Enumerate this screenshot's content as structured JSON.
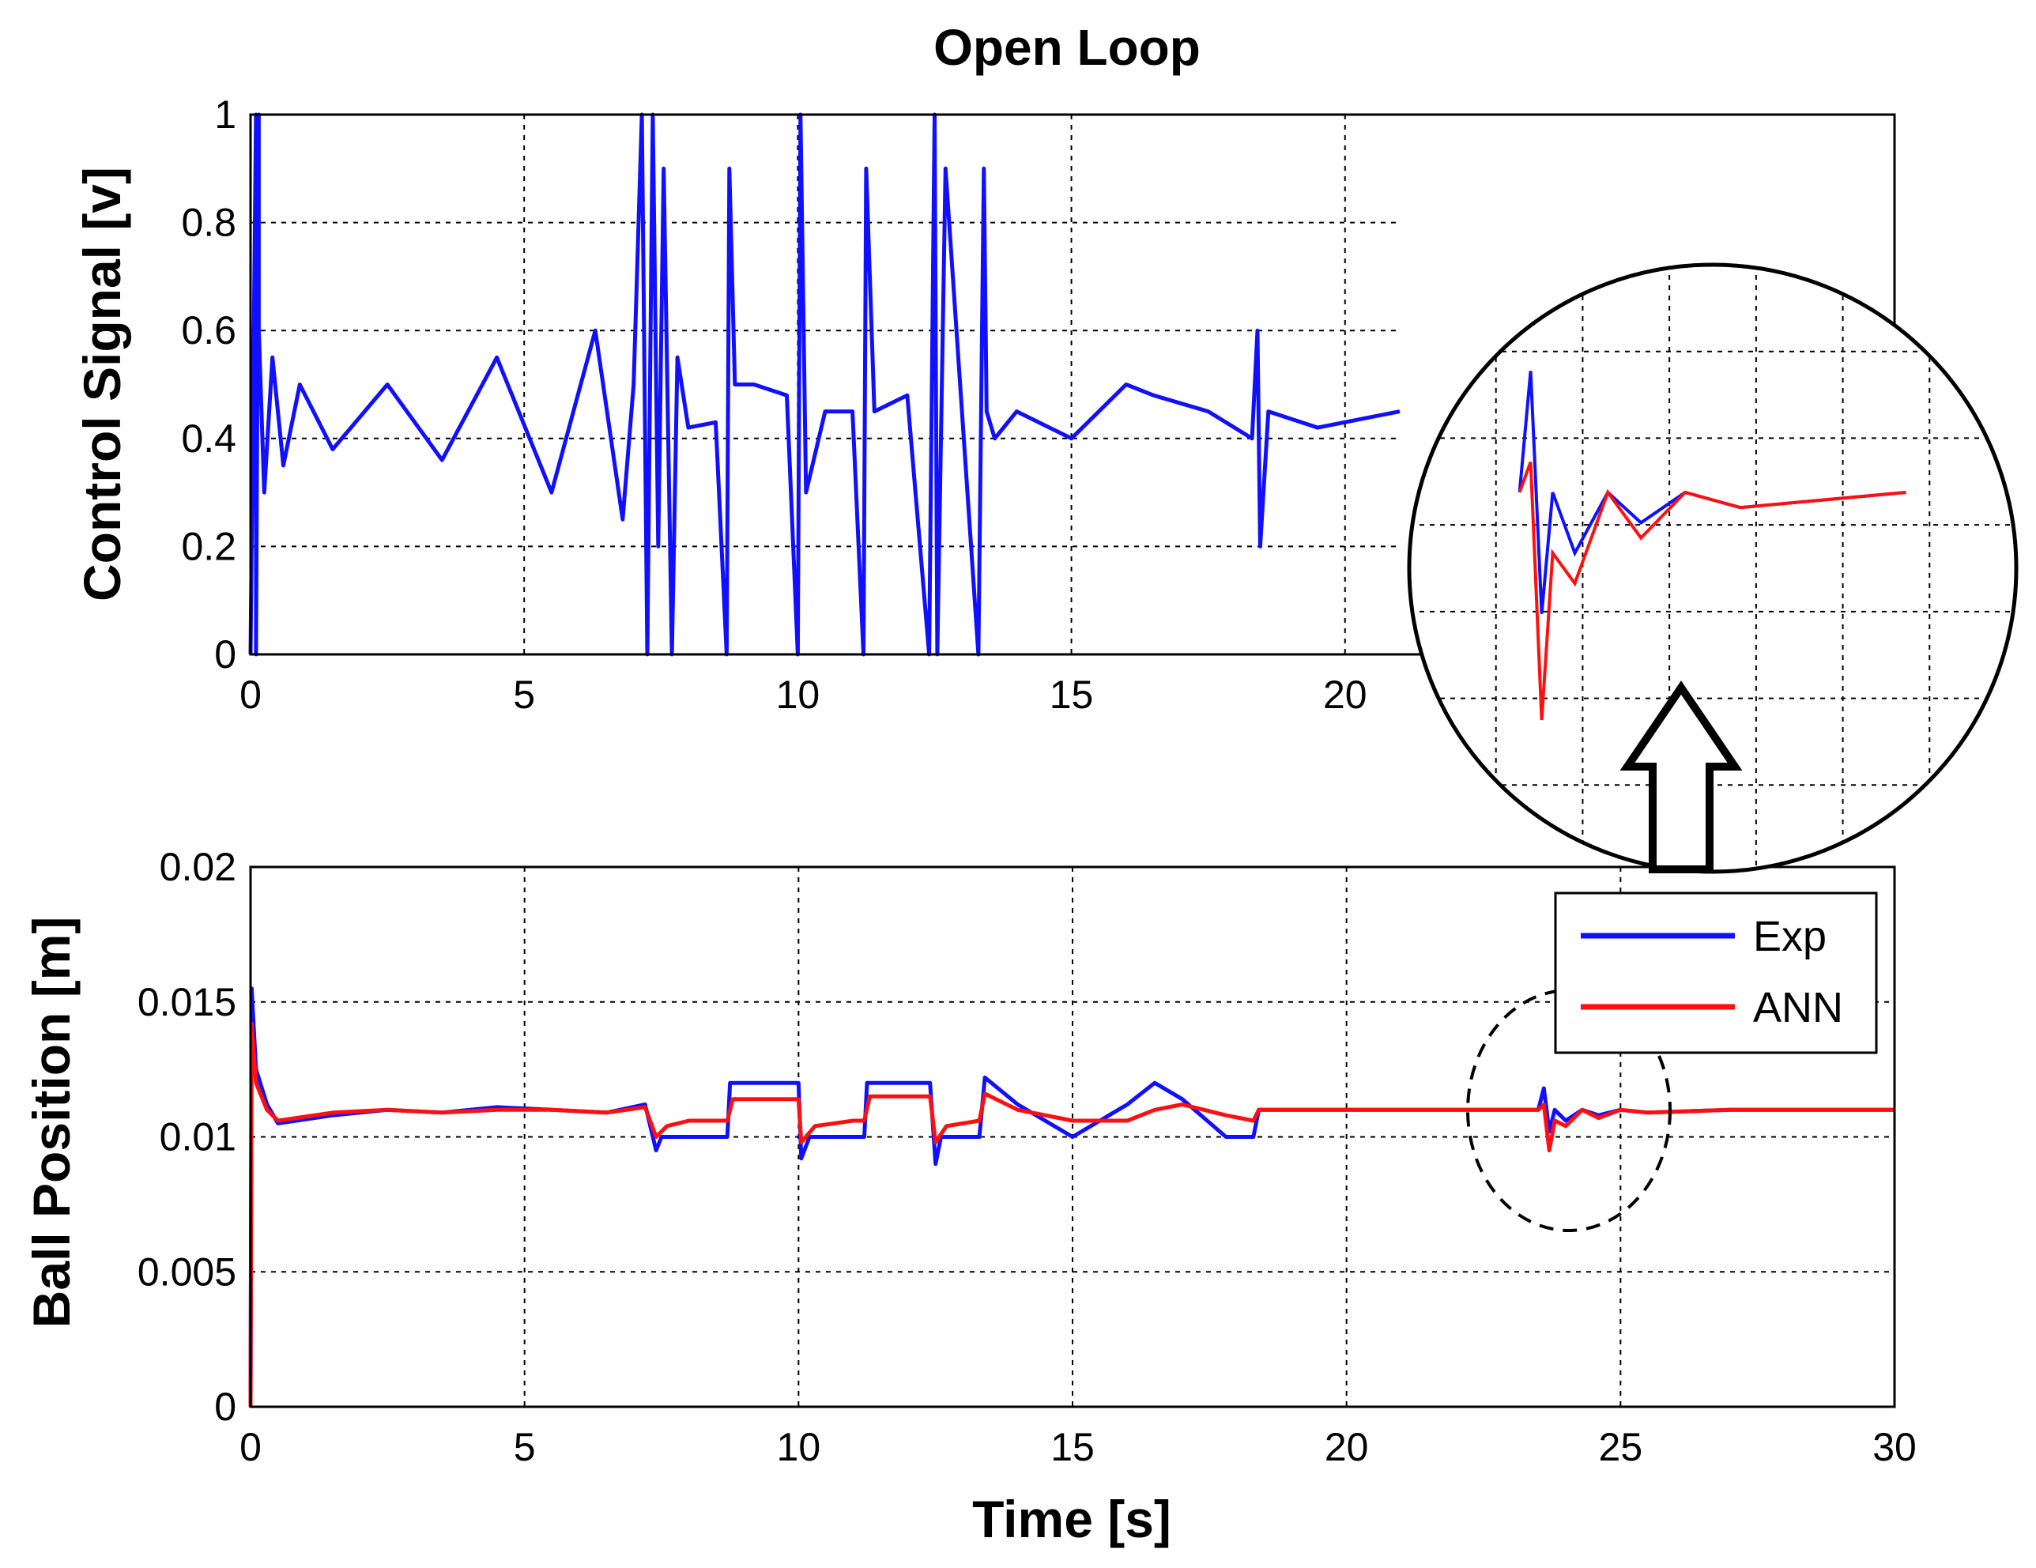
{
  "figure": {
    "title": "Open Loop",
    "xlabel": "Time [s]"
  },
  "colors": {
    "exp": "#1010ff",
    "ann": "#ff1010"
  },
  "chart_data": [
    {
      "type": "line",
      "ylabel": "Control Signal [v]",
      "xlim": [
        0,
        21
      ],
      "ylim": [
        0,
        1
      ],
      "xticks": [
        "0",
        "5",
        "10",
        "15",
        "20"
      ],
      "xtick_values": [
        0,
        5,
        10,
        15,
        20
      ],
      "yticks": [
        "0",
        "0.2",
        "0.4",
        "0.6",
        "0.8",
        "1"
      ],
      "ytick_values": [
        0,
        0.2,
        0.4,
        0.6,
        0.8,
        1
      ],
      "grid": true,
      "series": [
        {
          "color": "#1010ff",
          "x": [
            0,
            0.1,
            0.1,
            0.15,
            0.15,
            0.25,
            0.4,
            0.6,
            0.9,
            1.5,
            2.5,
            3.5,
            4.5,
            5.5,
            6.3,
            6.8,
            7.0,
            7.15,
            7.25,
            7.35,
            7.45,
            7.55,
            7.7,
            7.8,
            8.0,
            8.5,
            8.7,
            8.75,
            8.85,
            9.2,
            9.8,
            10.0,
            10.05,
            10.15,
            10.5,
            11.0,
            11.2,
            11.25,
            11.4,
            12.0,
            12.4,
            12.5,
            12.55,
            12.7,
            13.3,
            13.4,
            13.45,
            13.6,
            14.0,
            15.0,
            16.0,
            16.5,
            17.5,
            18.3,
            18.4,
            18.45,
            18.6,
            19.5,
            21.0
          ],
          "y": [
            0,
            1,
            0,
            1,
            0.6,
            0.3,
            0.55,
            0.35,
            0.5,
            0.38,
            0.5,
            0.36,
            0.55,
            0.3,
            0.6,
            0.25,
            0.5,
            1,
            0,
            1,
            0.2,
            0.9,
            0,
            0.55,
            0.42,
            0.43,
            0,
            0.9,
            0.5,
            0.5,
            0.48,
            0,
            1,
            0.3,
            0.45,
            0.45,
            0,
            0.9,
            0.45,
            0.48,
            0,
            1,
            0,
            0.9,
            0,
            0.9,
            0.45,
            0.4,
            0.45,
            0.4,
            0.5,
            0.48,
            0.45,
            0.4,
            0.6,
            0.2,
            0.45,
            0.42,
            0.45
          ]
        }
      ]
    },
    {
      "type": "line",
      "ylabel": "Ball Position [m]",
      "xlim": [
        0,
        30
      ],
      "ylim": [
        0,
        0.02
      ],
      "xticks": [
        "0",
        "5",
        "10",
        "15",
        "20",
        "25",
        "30"
      ],
      "xtick_values": [
        0,
        5,
        10,
        15,
        20,
        25,
        30
      ],
      "yticks": [
        "0",
        "0.005",
        "0.01",
        "0.015",
        "0.02"
      ],
      "ytick_values": [
        0,
        0.005,
        0.01,
        0.015,
        0.02
      ],
      "grid": true,
      "legend": "top-right",
      "series": [
        {
          "name": "Exp",
          "color": "#1010ff",
          "x": [
            0,
            0.02,
            0.1,
            0.3,
            0.5,
            1.5,
            2.5,
            3.5,
            4.5,
            5.5,
            6.5,
            7.2,
            7.4,
            7.5,
            8.0,
            8.7,
            8.75,
            10.0,
            10.05,
            10.2,
            11.0,
            11.2,
            11.25,
            12.4,
            12.5,
            12.6,
            13.3,
            13.4,
            14.0,
            15.0,
            16.0,
            16.5,
            17.0,
            17.8,
            18.3,
            18.4,
            20.0,
            23.5,
            23.6,
            23.7,
            23.8,
            24.0,
            24.3,
            24.6,
            25.0,
            25.5,
            27.0,
            30.0
          ],
          "y": [
            0,
            0.0155,
            0.0125,
            0.0112,
            0.0105,
            0.0108,
            0.011,
            0.0109,
            0.0111,
            0.011,
            0.0109,
            0.0112,
            0.0095,
            0.01,
            0.01,
            0.01,
            0.012,
            0.012,
            0.0092,
            0.01,
            0.01,
            0.01,
            0.012,
            0.012,
            0.009,
            0.01,
            0.01,
            0.0122,
            0.0112,
            0.01,
            0.0112,
            0.012,
            0.0114,
            0.01,
            0.01,
            0.011,
            0.011,
            0.011,
            0.0118,
            0.0102,
            0.011,
            0.0106,
            0.011,
            0.0108,
            0.011,
            0.0109,
            0.011,
            0.011
          ]
        },
        {
          "name": "ANN",
          "color": "#ff1010",
          "x": [
            0,
            0.02,
            0.1,
            0.3,
            0.5,
            1.5,
            2.5,
            3.5,
            4.5,
            5.5,
            6.5,
            7.2,
            7.4,
            7.6,
            8.0,
            8.7,
            8.8,
            10.0,
            10.05,
            10.3,
            11.0,
            11.2,
            11.3,
            12.4,
            12.5,
            12.7,
            13.3,
            13.4,
            14.0,
            15.0,
            16.0,
            16.5,
            17.0,
            17.8,
            18.3,
            18.4,
            20.0,
            23.5,
            23.6,
            23.7,
            23.8,
            24.0,
            24.3,
            24.6,
            25.0,
            25.5,
            27.0,
            30.0
          ],
          "y": [
            0,
            0.0142,
            0.012,
            0.011,
            0.0106,
            0.0109,
            0.011,
            0.0109,
            0.011,
            0.011,
            0.0109,
            0.0111,
            0.01,
            0.0104,
            0.0106,
            0.0106,
            0.0114,
            0.0114,
            0.0098,
            0.0104,
            0.0106,
            0.0106,
            0.0115,
            0.0115,
            0.0098,
            0.0104,
            0.0106,
            0.0116,
            0.011,
            0.0106,
            0.0106,
            0.011,
            0.0112,
            0.0108,
            0.0106,
            0.011,
            0.011,
            0.011,
            0.0112,
            0.0095,
            0.0106,
            0.0104,
            0.011,
            0.0107,
            0.011,
            0.0109,
            0.011,
            0.011
          ]
        }
      ]
    }
  ]
}
